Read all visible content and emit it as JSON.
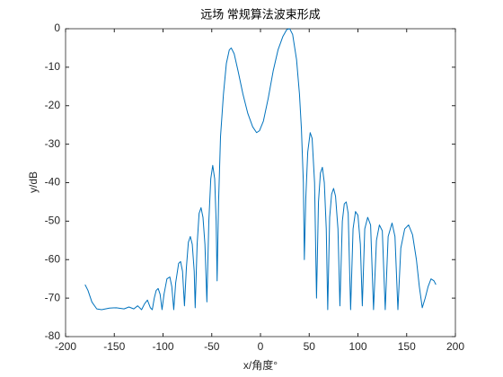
{
  "chart_data": {
    "type": "line",
    "title": "远场 常规算法波束形成",
    "xlabel": "x/角度°",
    "ylabel": "y/dB",
    "x": [
      -180,
      -177,
      -173,
      -168,
      -163,
      -155,
      -148,
      -140,
      -135,
      -130,
      -126,
      -122,
      -119,
      -116,
      -113,
      -111,
      -109,
      -107,
      -105,
      -103,
      -101,
      -99,
      -96,
      -93,
      -91,
      -89,
      -87,
      -84,
      -82,
      -80,
      -78,
      -76,
      -74,
      -72,
      -70,
      -68,
      -67,
      -65,
      -63,
      -61,
      -59,
      -57,
      -55,
      -53,
      -51,
      -49,
      -47,
      -45.5,
      -44.5,
      -43,
      -41,
      -38,
      -35,
      -32,
      -30,
      -27,
      -23,
      -18,
      -13,
      -8,
      -4,
      -1,
      3,
      8,
      13,
      18,
      23,
      27,
      30,
      33,
      37,
      40,
      42,
      44,
      45,
      46.5,
      48.5,
      51,
      53,
      55.5,
      57.5,
      59.5,
      61.5,
      63.5,
      65.5,
      67.5,
      69,
      71,
      73,
      75,
      77,
      79.5,
      81.5,
      84,
      86,
      88,
      90,
      92.5,
      95,
      97.5,
      100,
      102.5,
      104.5,
      107,
      110,
      113,
      116,
      119,
      122,
      125,
      128,
      131,
      135,
      138,
      141,
      144,
      148,
      152,
      156,
      160,
      163,
      166,
      169,
      172,
      175,
      178,
      180
    ],
    "values": [
      -66.5,
      -68,
      -71,
      -72.8,
      -73,
      -72.6,
      -72.5,
      -72.8,
      -72.3,
      -72.8,
      -72,
      -73,
      -71.5,
      -70.5,
      -72.5,
      -73,
      -70,
      -68,
      -67.5,
      -69,
      -73,
      -69,
      -65,
      -64.5,
      -67,
      -73,
      -66,
      -61,
      -60.5,
      -63,
      -72,
      -62,
      -55.5,
      -54,
      -56,
      -63,
      -72.5,
      -56,
      -48,
      -46.5,
      -49,
      -56,
      -71,
      -50,
      -39,
      -35.5,
      -39,
      -50,
      -65.5,
      -45,
      -28,
      -17,
      -9,
      -5.5,
      -5,
      -6.5,
      -11,
      -17,
      -22,
      -25.5,
      -27,
      -26.5,
      -24,
      -18,
      -11,
      -5.5,
      -2,
      -0.2,
      0,
      -1.5,
      -8,
      -17,
      -26,
      -40,
      -60,
      -44,
      -32,
      -27,
      -28.5,
      -40,
      -70,
      -45,
      -37.5,
      -36,
      -40,
      -52,
      -73,
      -49,
      -43,
      -41.5,
      -43.5,
      -52,
      -72,
      -50,
      -45.5,
      -45,
      -48,
      -73,
      -52,
      -47.5,
      -48.5,
      -56,
      -72,
      -52,
      -49,
      -51,
      -73,
      -55,
      -51,
      -52.5,
      -73,
      -54,
      -50.5,
      -54,
      -73,
      -57,
      -52,
      -51,
      -53.5,
      -60,
      -67,
      -72.5,
      -70,
      -67,
      -65,
      -65.5,
      -66.5
    ],
    "color": "#0072bd",
    "xlim": [
      -200,
      200
    ],
    "xticks": [
      -200,
      -150,
      -100,
      -50,
      0,
      50,
      100,
      150,
      200
    ],
    "ylim": [
      -80,
      0
    ],
    "yticks": [
      -80,
      -70,
      -60,
      -50,
      -40,
      -30,
      -20,
      -10,
      0
    ]
  }
}
